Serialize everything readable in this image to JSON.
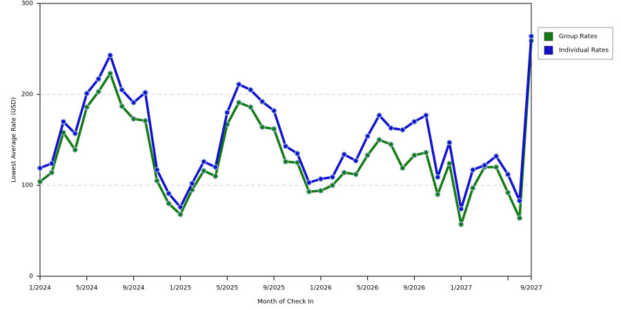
{
  "chart_data": {
    "type": "line",
    "x_label": "Month of Check In",
    "y_label": "Lowest Average Rate (USD)",
    "categories": [
      "1/2024",
      null,
      null,
      null,
      "5/2024",
      null,
      null,
      null,
      "9/2024",
      null,
      null,
      null,
      "1/2025",
      null,
      null,
      null,
      "5/2025",
      null,
      null,
      null,
      "9/2025",
      null,
      null,
      null,
      "1/2026",
      null,
      null,
      null,
      "5/2026",
      null,
      null,
      null,
      "9/2026",
      null,
      null,
      null,
      "1/2027",
      null,
      null,
      null,
      null,
      null,
      "9/2027"
    ],
    "series": [
      {
        "name": "Group Rates",
        "color": "#157a15",
        "values": [
          104,
          114,
          158,
          139,
          186,
          203,
          223,
          187,
          173,
          171,
          105,
          80,
          68,
          95,
          116,
          110,
          167,
          191,
          186,
          164,
          162,
          126,
          125,
          93,
          94,
          100,
          114,
          112,
          133,
          150,
          145,
          119,
          133,
          136,
          90,
          124,
          57,
          97,
          120,
          120,
          92,
          64,
          259
        ]
      },
      {
        "name": "Individual Rates",
        "color": "#1212cc",
        "values": [
          119,
          124,
          170,
          157,
          201,
          217,
          243,
          205,
          191,
          202,
          117,
          91,
          76,
          102,
          126,
          120,
          180,
          211,
          205,
          192,
          182,
          143,
          135,
          103,
          107,
          109,
          134,
          127,
          154,
          177,
          163,
          161,
          170,
          177,
          109,
          147,
          74,
          117,
          122,
          132,
          112,
          83,
          264
        ]
      }
    ],
    "ylim": [
      0,
      300
    ],
    "yticks": [
      0,
      100,
      200,
      300
    ],
    "grid": true,
    "legend": "right"
  }
}
